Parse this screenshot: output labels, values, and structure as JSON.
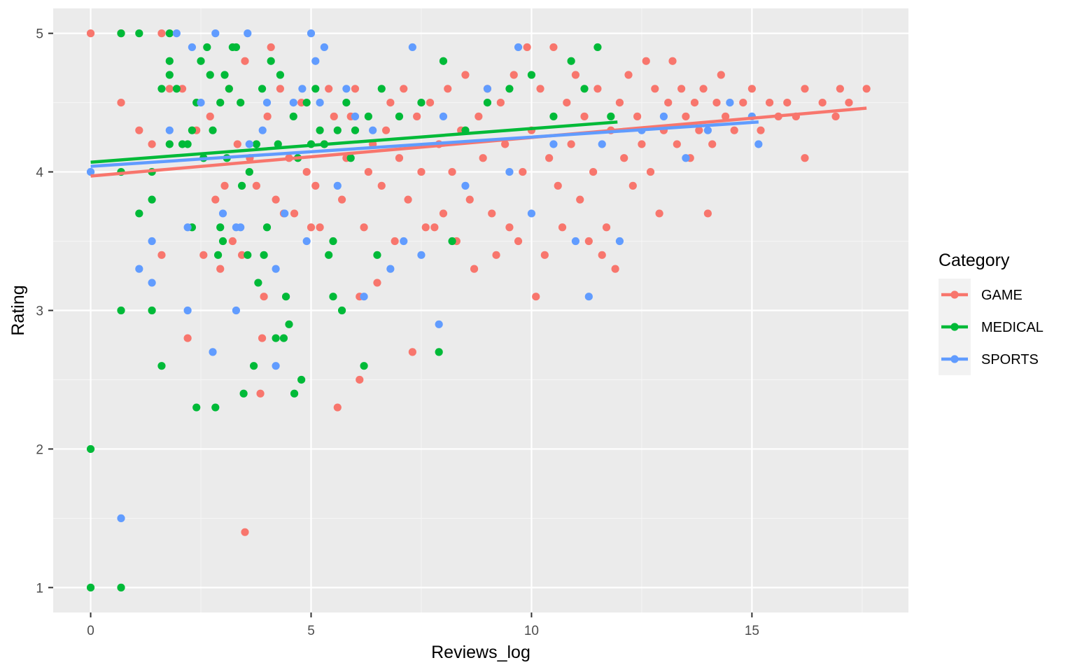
{
  "chart_data": {
    "type": "scatter",
    "title": "",
    "xlabel": "Reviews_log",
    "ylabel": "Rating",
    "xlim": [
      -0.85,
      18.55
    ],
    "ylim": [
      0.82,
      5.18
    ],
    "x_ticks": [
      0,
      5,
      10,
      15
    ],
    "x_tick_labels": [
      "0",
      "5",
      "10",
      "15"
    ],
    "y_ticks": [
      1,
      2,
      3,
      4,
      5
    ],
    "y_tick_labels": [
      "1",
      "2",
      "3",
      "4",
      "5"
    ],
    "grid": true,
    "legend": {
      "title": "Category",
      "position": "right"
    },
    "series": [
      {
        "name": "GAME",
        "color": "#F8766D",
        "trend": {
          "x": [
            0,
            17.6
          ],
          "y": [
            3.97,
            4.46
          ]
        },
        "points": [
          [
            0,
            5
          ],
          [
            0.69,
            5
          ],
          [
            0.69,
            4.5
          ],
          [
            1.1,
            4.3
          ],
          [
            1.39,
            4.2
          ],
          [
            1.61,
            3.4
          ],
          [
            1.61,
            5
          ],
          [
            1.79,
            4.6
          ],
          [
            2.08,
            4.6
          ],
          [
            2.2,
            2.8
          ],
          [
            2.4,
            4.3
          ],
          [
            2.56,
            3.4
          ],
          [
            2.71,
            4.4
          ],
          [
            2.83,
            3.8
          ],
          [
            2.94,
            3.3
          ],
          [
            3.04,
            3.9
          ],
          [
            3.14,
            4.6
          ],
          [
            3.22,
            3.5
          ],
          [
            3.33,
            4.2
          ],
          [
            3.43,
            3.4
          ],
          [
            3.5,
            4.8
          ],
          [
            3.5,
            1.4
          ],
          [
            3.61,
            4.1
          ],
          [
            3.76,
            3.9
          ],
          [
            3.85,
            2.4
          ],
          [
            3.89,
            2.8
          ],
          [
            3.93,
            3.1
          ],
          [
            4.01,
            4.4
          ],
          [
            4.09,
            4.9
          ],
          [
            4.2,
            3.8
          ],
          [
            4.3,
            4.6
          ],
          [
            4.38,
            3.7
          ],
          [
            4.5,
            4.1
          ],
          [
            4.62,
            3.7
          ],
          [
            4.78,
            4.5
          ],
          [
            4.9,
            4.0
          ],
          [
            5.0,
            3.6
          ],
          [
            5.1,
            3.9
          ],
          [
            5.2,
            3.6
          ],
          [
            5.3,
            4.2
          ],
          [
            5.4,
            4.6
          ],
          [
            5.52,
            4.4
          ],
          [
            5.6,
            2.3
          ],
          [
            5.7,
            3.8
          ],
          [
            5.8,
            4.1
          ],
          [
            5.9,
            4.4
          ],
          [
            6.0,
            4.6
          ],
          [
            6.1,
            2.5
          ],
          [
            6.1,
            3.1
          ],
          [
            6.2,
            3.6
          ],
          [
            6.3,
            4.0
          ],
          [
            6.4,
            4.2
          ],
          [
            6.5,
            3.2
          ],
          [
            6.6,
            3.9
          ],
          [
            6.7,
            4.3
          ],
          [
            6.8,
            4.5
          ],
          [
            6.9,
            3.5
          ],
          [
            7.0,
            4.1
          ],
          [
            7.1,
            4.6
          ],
          [
            7.2,
            3.8
          ],
          [
            7.3,
            2.7
          ],
          [
            7.4,
            4.4
          ],
          [
            7.5,
            4.0
          ],
          [
            7.6,
            3.6
          ],
          [
            7.7,
            4.5
          ],
          [
            7.8,
            3.6
          ],
          [
            7.9,
            4.2
          ],
          [
            8.0,
            3.7
          ],
          [
            8.1,
            4.6
          ],
          [
            8.2,
            4.0
          ],
          [
            8.3,
            3.5
          ],
          [
            8.4,
            4.3
          ],
          [
            8.5,
            4.7
          ],
          [
            8.6,
            3.8
          ],
          [
            8.7,
            3.3
          ],
          [
            8.8,
            4.4
          ],
          [
            8.9,
            4.1
          ],
          [
            9.0,
            4.6
          ],
          [
            9.1,
            3.7
          ],
          [
            9.2,
            3.4
          ],
          [
            9.3,
            4.5
          ],
          [
            9.4,
            4.2
          ],
          [
            9.5,
            3.6
          ],
          [
            9.6,
            4.7
          ],
          [
            9.7,
            3.5
          ],
          [
            9.8,
            4.0
          ],
          [
            9.9,
            4.9
          ],
          [
            10.0,
            4.3
          ],
          [
            10.1,
            3.1
          ],
          [
            10.2,
            4.6
          ],
          [
            10.3,
            3.4
          ],
          [
            10.4,
            4.1
          ],
          [
            10.5,
            4.9
          ],
          [
            10.6,
            3.9
          ],
          [
            10.7,
            3.6
          ],
          [
            10.8,
            4.5
          ],
          [
            10.9,
            4.2
          ],
          [
            11.0,
            4.7
          ],
          [
            11.1,
            3.8
          ],
          [
            11.2,
            4.4
          ],
          [
            11.3,
            3.5
          ],
          [
            11.4,
            4.0
          ],
          [
            11.5,
            4.6
          ],
          [
            11.6,
            3.4
          ],
          [
            11.7,
            3.6
          ],
          [
            11.8,
            4.3
          ],
          [
            11.9,
            3.3
          ],
          [
            12.0,
            4.5
          ],
          [
            12.1,
            4.1
          ],
          [
            12.2,
            4.7
          ],
          [
            12.3,
            3.9
          ],
          [
            12.4,
            4.4
          ],
          [
            12.5,
            4.2
          ],
          [
            12.6,
            4.8
          ],
          [
            12.7,
            4.0
          ],
          [
            12.8,
            4.6
          ],
          [
            12.9,
            3.7
          ],
          [
            13.0,
            4.3
          ],
          [
            13.1,
            4.5
          ],
          [
            13.2,
            4.8
          ],
          [
            13.3,
            4.2
          ],
          [
            13.4,
            4.6
          ],
          [
            13.5,
            4.4
          ],
          [
            13.6,
            4.1
          ],
          [
            13.7,
            4.5
          ],
          [
            13.8,
            4.3
          ],
          [
            13.9,
            4.6
          ],
          [
            14.0,
            3.7
          ],
          [
            14.1,
            4.2
          ],
          [
            14.2,
            4.5
          ],
          [
            14.3,
            4.7
          ],
          [
            14.4,
            4.4
          ],
          [
            14.6,
            4.3
          ],
          [
            14.8,
            4.5
          ],
          [
            15.0,
            4.6
          ],
          [
            15.2,
            4.3
          ],
          [
            15.4,
            4.5
          ],
          [
            15.6,
            4.4
          ],
          [
            15.8,
            4.5
          ],
          [
            16.0,
            4.4
          ],
          [
            16.2,
            4.1
          ],
          [
            16.2,
            4.6
          ],
          [
            16.6,
            4.5
          ],
          [
            16.9,
            4.4
          ],
          [
            17.0,
            4.6
          ],
          [
            17.2,
            4.5
          ],
          [
            17.6,
            4.6
          ]
        ]
      },
      {
        "name": "MEDICAL",
        "color": "#00BA38",
        "trend": {
          "x": [
            0,
            11.95
          ],
          "y": [
            4.07,
            4.36
          ]
        },
        "points": [
          [
            0,
            2
          ],
          [
            0,
            1
          ],
          [
            0.69,
            5
          ],
          [
            0.69,
            4
          ],
          [
            0.69,
            3
          ],
          [
            0.69,
            1
          ],
          [
            1.1,
            5
          ],
          [
            1.1,
            3.7
          ],
          [
            1.39,
            4
          ],
          [
            1.39,
            3.8
          ],
          [
            1.39,
            3
          ],
          [
            1.61,
            4.6
          ],
          [
            1.61,
            2.6
          ],
          [
            1.79,
            5
          ],
          [
            1.79,
            4.8
          ],
          [
            1.79,
            4.7
          ],
          [
            1.79,
            4.2
          ],
          [
            1.95,
            4.6
          ],
          [
            2.08,
            4.2
          ],
          [
            2.2,
            4.2
          ],
          [
            2.3,
            4.3
          ],
          [
            2.3,
            3.6
          ],
          [
            2.4,
            2.3
          ],
          [
            2.4,
            4.5
          ],
          [
            2.5,
            4.8
          ],
          [
            2.56,
            4.1
          ],
          [
            2.64,
            4.9
          ],
          [
            2.71,
            4.7
          ],
          [
            2.77,
            4.3
          ],
          [
            2.83,
            2.3
          ],
          [
            2.89,
            3.4
          ],
          [
            2.94,
            3.6
          ],
          [
            2.94,
            4.5
          ],
          [
            3.0,
            3.5
          ],
          [
            3.04,
            4.7
          ],
          [
            3.09,
            4.1
          ],
          [
            3.14,
            4.6
          ],
          [
            3.22,
            4.9
          ],
          [
            3.3,
            4.9
          ],
          [
            3.4,
            4.5
          ],
          [
            3.43,
            3.9
          ],
          [
            3.47,
            2.4
          ],
          [
            3.56,
            3.4
          ],
          [
            3.6,
            4.0
          ],
          [
            3.7,
            2.6
          ],
          [
            3.76,
            4.2
          ],
          [
            3.8,
            3.2
          ],
          [
            3.89,
            4.6
          ],
          [
            3.93,
            3.4
          ],
          [
            4.0,
            3.6
          ],
          [
            4.09,
            4.8
          ],
          [
            4.2,
            2.8
          ],
          [
            4.25,
            4.2
          ],
          [
            4.3,
            4.7
          ],
          [
            4.38,
            2.8
          ],
          [
            4.43,
            3.1
          ],
          [
            4.5,
            2.9
          ],
          [
            4.6,
            4.4
          ],
          [
            4.62,
            2.4
          ],
          [
            4.7,
            4.1
          ],
          [
            4.78,
            2.5
          ],
          [
            4.9,
            4.5
          ],
          [
            5.0,
            4.2
          ],
          [
            5.1,
            4.6
          ],
          [
            5.2,
            4.3
          ],
          [
            5.3,
            4.2
          ],
          [
            5.4,
            3.4
          ],
          [
            5.5,
            3.5
          ],
          [
            5.5,
            3.1
          ],
          [
            5.6,
            4.3
          ],
          [
            5.7,
            3.0
          ],
          [
            5.8,
            4.5
          ],
          [
            5.9,
            4.1
          ],
          [
            6.0,
            4.3
          ],
          [
            6.2,
            2.6
          ],
          [
            6.3,
            4.4
          ],
          [
            6.5,
            3.4
          ],
          [
            6.6,
            4.6
          ],
          [
            7.0,
            4.4
          ],
          [
            7.5,
            4.5
          ],
          [
            7.9,
            2.7
          ],
          [
            8.0,
            4.8
          ],
          [
            8.2,
            3.5
          ],
          [
            8.5,
            4.3
          ],
          [
            9.0,
            4.5
          ],
          [
            9.5,
            4.6
          ],
          [
            10.0,
            4.7
          ],
          [
            10.5,
            4.4
          ],
          [
            10.9,
            4.8
          ],
          [
            11.2,
            4.6
          ],
          [
            11.5,
            4.9
          ],
          [
            11.8,
            4.4
          ]
        ]
      },
      {
        "name": "SPORTS",
        "color": "#619CFF",
        "trend": {
          "x": [
            0,
            15.15
          ],
          "y": [
            4.04,
            4.36
          ]
        },
        "points": [
          [
            0,
            4
          ],
          [
            0.69,
            1.5
          ],
          [
            1.1,
            3.3
          ],
          [
            1.39,
            3.5
          ],
          [
            1.39,
            3.2
          ],
          [
            1.79,
            4.3
          ],
          [
            1.95,
            5
          ],
          [
            2.2,
            3.0
          ],
          [
            2.2,
            3.6
          ],
          [
            2.3,
            4.9
          ],
          [
            2.5,
            4.5
          ],
          [
            2.77,
            2.7
          ],
          [
            2.83,
            5
          ],
          [
            3.0,
            3.7
          ],
          [
            3.3,
            3.0
          ],
          [
            3.3,
            3.6
          ],
          [
            3.4,
            3.6
          ],
          [
            3.56,
            5
          ],
          [
            3.6,
            4.2
          ],
          [
            3.9,
            4.3
          ],
          [
            4.0,
            4.5
          ],
          [
            4.2,
            3.3
          ],
          [
            4.2,
            2.6
          ],
          [
            4.4,
            3.7
          ],
          [
            4.6,
            4.5
          ],
          [
            4.8,
            4.6
          ],
          [
            4.9,
            3.5
          ],
          [
            5.0,
            5
          ],
          [
            5.1,
            4.8
          ],
          [
            5.2,
            4.5
          ],
          [
            5.3,
            4.9
          ],
          [
            5.6,
            3.9
          ],
          [
            5.8,
            4.6
          ],
          [
            6.0,
            4.4
          ],
          [
            6.2,
            3.1
          ],
          [
            6.4,
            4.3
          ],
          [
            6.8,
            3.3
          ],
          [
            7.1,
            3.5
          ],
          [
            7.3,
            4.9
          ],
          [
            7.5,
            3.4
          ],
          [
            7.9,
            2.9
          ],
          [
            8.0,
            4.4
          ],
          [
            8.5,
            3.9
          ],
          [
            9.0,
            4.6
          ],
          [
            9.5,
            4.0
          ],
          [
            9.7,
            4.9
          ],
          [
            10.0,
            3.7
          ],
          [
            10.5,
            4.2
          ],
          [
            11.0,
            3.5
          ],
          [
            11.3,
            3.1
          ],
          [
            11.6,
            4.2
          ],
          [
            12.0,
            3.5
          ],
          [
            12.5,
            4.3
          ],
          [
            13.0,
            4.4
          ],
          [
            13.5,
            4.1
          ],
          [
            14.0,
            4.3
          ],
          [
            14.5,
            4.5
          ],
          [
            15.0,
            4.4
          ],
          [
            15.15,
            4.2
          ]
        ]
      }
    ]
  }
}
